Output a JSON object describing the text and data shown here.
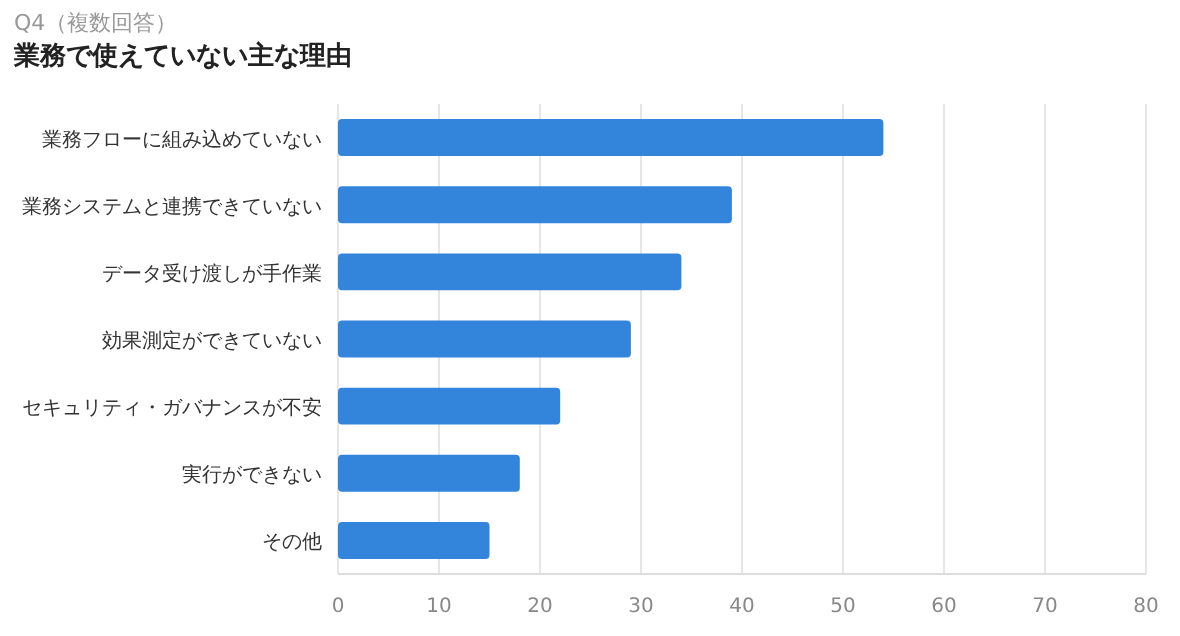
{
  "chart_data": {
    "type": "bar",
    "orientation": "horizontal",
    "title": "業務で使えていない主な理由",
    "subtitle": "Q4（複数回答）",
    "categories": [
      "業務フローに組み込めていない",
      "業務システムと連携できていない",
      "データ受け渡しが手作業",
      "効果測定ができていない",
      "セキュリティ・ガバナンスが不安",
      "実行ができない",
      "その他"
    ],
    "values": [
      54,
      39,
      34,
      29,
      22,
      18,
      15
    ],
    "color": "#3385dc",
    "xlim": [
      0,
      80
    ],
    "xticks": [
      0,
      10,
      20,
      30,
      40,
      50,
      60,
      70,
      80
    ],
    "grid": "x"
  }
}
